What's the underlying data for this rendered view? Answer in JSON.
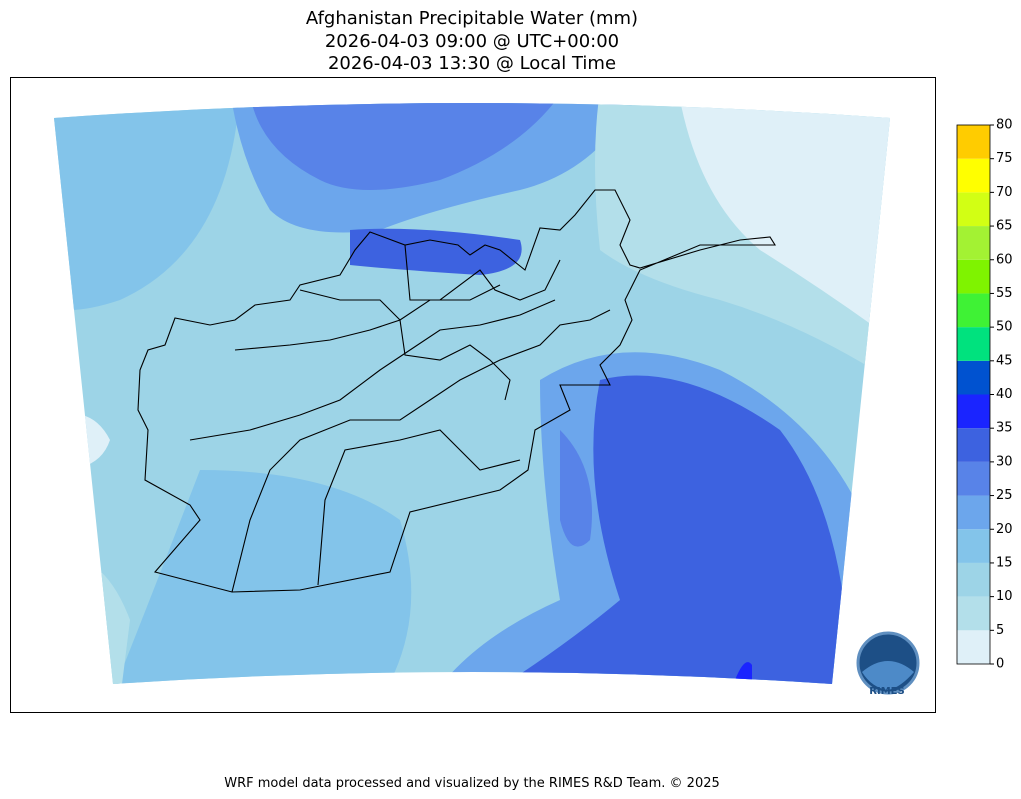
{
  "header": {
    "title_lines": [
      "Afghanistan Precipitable Water (mm)",
      "2026-04-03 09:00 @ UTC+00:00",
      "2026-04-03 13:30 @ Local Time"
    ]
  },
  "colorbar": {
    "levels": [
      0,
      5,
      10,
      15,
      20,
      25,
      30,
      35,
      40,
      45,
      50,
      55,
      60,
      65,
      70,
      75,
      80
    ],
    "colors": [
      "#dff0f8",
      "#b3dfea",
      "#9dd4e7",
      "#83c4ea",
      "#6ca6ec",
      "#5883e8",
      "#3d62e0",
      "#1a24ff",
      "#0052d0",
      "#00e27e",
      "#3ff235",
      "#7ff300",
      "#a3f233",
      "#d2ff14",
      "#ffff00",
      "#ffcc00"
    ]
  },
  "logo": {
    "label": "RIMES"
  },
  "footer": {
    "text": "WRF model data processed and visualized by the RIMES R&D Team. © 2025"
  }
}
